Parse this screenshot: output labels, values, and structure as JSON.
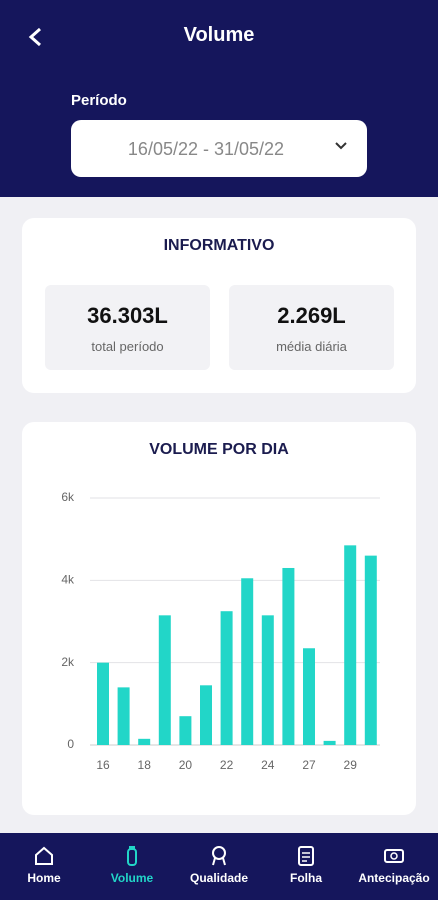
{
  "header": {
    "title": "Volume",
    "period_label": "Período",
    "period_value": "16/05/22 - 31/05/22"
  },
  "info": {
    "title": "INFORMATIVO",
    "items": [
      {
        "value": "36.303L",
        "label": "total período"
      },
      {
        "value": "2.269L",
        "label": "média diária"
      }
    ]
  },
  "chart": {
    "type": "bar",
    "title": "VOLUME POR DIA",
    "categories": [
      "16",
      null,
      "18",
      null,
      "20",
      null,
      "22",
      null,
      "24",
      null,
      "27",
      null,
      "29",
      null
    ],
    "values": [
      2000,
      1400,
      150,
      3150,
      700,
      1450,
      3250,
      4050,
      3150,
      4300,
      2350,
      100,
      4850,
      4600
    ],
    "color": "#22d6c8",
    "ylim": [
      0,
      6000
    ],
    "yticks": [
      0,
      {
        "value": 2000,
        "label": "2k"
      },
      {
        "value": 4000,
        "label": "4k"
      },
      {
        "value": 6000,
        "label": "6k"
      }
    ],
    "grid": true
  },
  "nav": {
    "items": [
      "Home",
      "Volume",
      "Qualidade",
      "Folha",
      "Antecipação"
    ],
    "active": "Volume"
  }
}
